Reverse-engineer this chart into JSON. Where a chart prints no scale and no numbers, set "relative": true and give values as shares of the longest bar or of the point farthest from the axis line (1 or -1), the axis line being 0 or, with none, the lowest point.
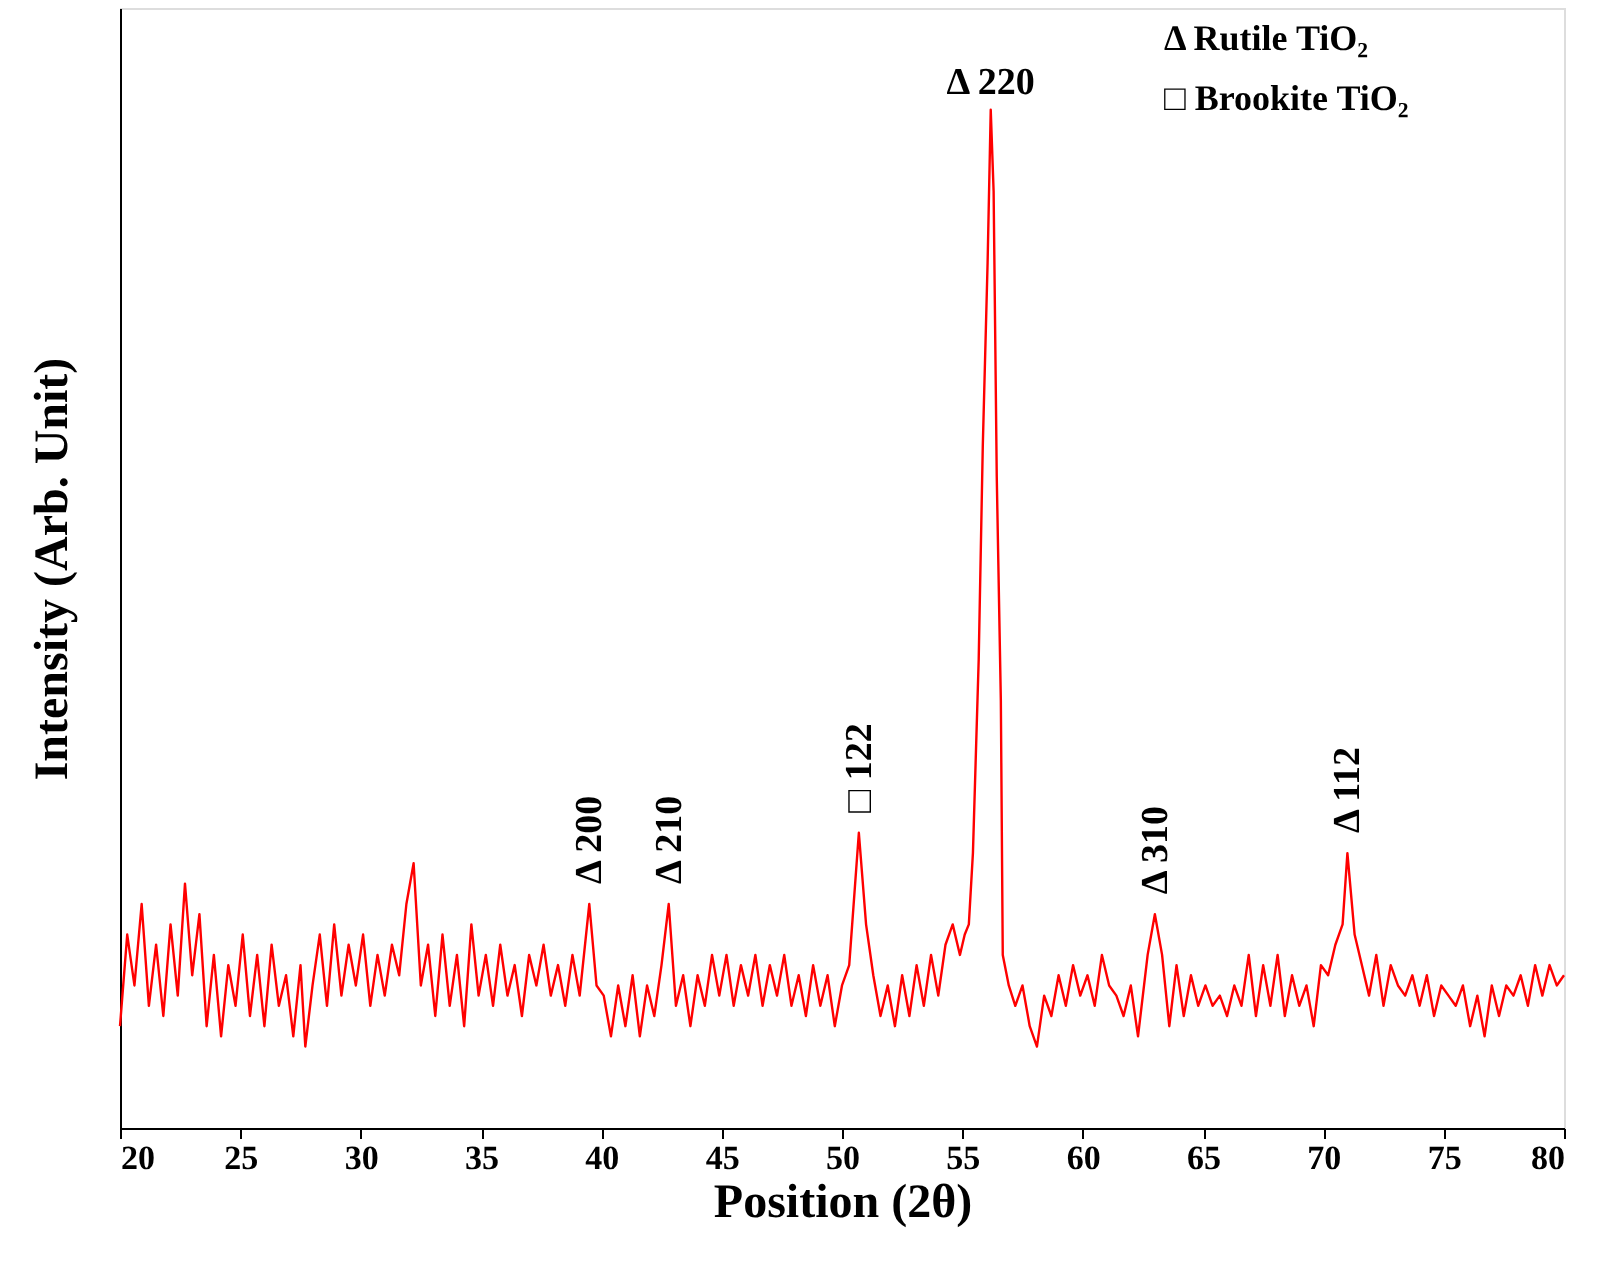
{
  "chart_data": {
    "type": "line",
    "relative": true,
    "xlabel": "Position (2θ)",
    "ylabel": "Intensity (Arb. Unit)",
    "xlim": [
      20,
      80
    ],
    "xticks": [
      20,
      25,
      30,
      35,
      40,
      45,
      50,
      55,
      60,
      65,
      70,
      75,
      80
    ],
    "grid": false,
    "tick_labels": "x",
    "series": [
      {
        "color": "#ff0000",
        "x": [
          20.0,
          20.3,
          20.6,
          20.9,
          21.2,
          21.5,
          21.8,
          22.1,
          22.4,
          22.7,
          23.0,
          23.3,
          23.6,
          23.9,
          24.2,
          24.5,
          24.8,
          25.1,
          25.4,
          25.7,
          26.0,
          26.3,
          26.6,
          26.9,
          27.2,
          27.5,
          27.7,
          28.0,
          28.3,
          28.6,
          28.9,
          29.2,
          29.5,
          29.8,
          30.1,
          30.4,
          30.7,
          31.0,
          31.3,
          31.6,
          31.9,
          32.2,
          32.5,
          32.8,
          33.1,
          33.4,
          33.7,
          34.0,
          34.3,
          34.6,
          34.9,
          35.2,
          35.5,
          35.8,
          36.1,
          36.4,
          36.7,
          37.0,
          37.3,
          37.6,
          37.9,
          38.2,
          38.5,
          38.8,
          39.1,
          39.5,
          39.8,
          40.1,
          40.4,
          40.7,
          41.0,
          41.3,
          41.6,
          41.9,
          42.2,
          42.5,
          42.8,
          43.1,
          43.4,
          43.7,
          44.0,
          44.3,
          44.6,
          44.9,
          45.2,
          45.5,
          45.8,
          46.1,
          46.4,
          46.7,
          47.0,
          47.3,
          47.6,
          47.9,
          48.2,
          48.5,
          48.8,
          49.1,
          49.4,
          49.7,
          50.0,
          50.3,
          50.7,
          51.0,
          51.3,
          51.6,
          51.9,
          52.2,
          52.5,
          52.8,
          53.1,
          53.4,
          53.7,
          54.0,
          54.3,
          54.6,
          54.9,
          55.1,
          55.27,
          55.44,
          55.68,
          55.85,
          56.05,
          56.18,
          56.3,
          56.43,
          56.6,
          56.68,
          56.93,
          57.2,
          57.5,
          57.8,
          58.1,
          58.4,
          58.7,
          59.0,
          59.3,
          59.6,
          59.9,
          60.2,
          60.5,
          60.8,
          61.1,
          61.4,
          61.7,
          62.0,
          62.3,
          62.7,
          63.0,
          63.3,
          63.6,
          63.9,
          64.2,
          64.5,
          64.8,
          65.1,
          65.4,
          65.7,
          66.0,
          66.3,
          66.6,
          66.9,
          67.2,
          67.5,
          67.8,
          68.1,
          68.4,
          68.7,
          69.0,
          69.3,
          69.6,
          69.9,
          70.2,
          70.5,
          70.8,
          71.0,
          71.3,
          71.6,
          71.9,
          72.2,
          72.5,
          72.8,
          73.1,
          73.4,
          73.7,
          74.0,
          74.3,
          74.6,
          74.9,
          75.2,
          75.5,
          75.8,
          76.1,
          76.4,
          76.7,
          77.0,
          77.3,
          77.6,
          77.9,
          78.2,
          78.5,
          78.8,
          79.1,
          79.4,
          79.7,
          80.0
        ],
        "values": [
          0.1,
          0.19,
          0.14,
          0.22,
          0.12,
          0.18,
          0.11,
          0.2,
          0.13,
          0.24,
          0.15,
          0.21,
          0.1,
          0.17,
          0.09,
          0.16,
          0.12,
          0.19,
          0.11,
          0.17,
          0.1,
          0.18,
          0.12,
          0.15,
          0.09,
          0.16,
          0.08,
          0.14,
          0.19,
          0.12,
          0.2,
          0.13,
          0.18,
          0.14,
          0.19,
          0.12,
          0.17,
          0.13,
          0.18,
          0.15,
          0.22,
          0.26,
          0.14,
          0.18,
          0.11,
          0.19,
          0.12,
          0.17,
          0.1,
          0.2,
          0.13,
          0.17,
          0.12,
          0.18,
          0.13,
          0.16,
          0.11,
          0.17,
          0.14,
          0.18,
          0.13,
          0.16,
          0.12,
          0.17,
          0.13,
          0.22,
          0.14,
          0.13,
          0.09,
          0.14,
          0.1,
          0.15,
          0.09,
          0.14,
          0.11,
          0.16,
          0.22,
          0.12,
          0.15,
          0.1,
          0.15,
          0.12,
          0.17,
          0.13,
          0.17,
          0.12,
          0.16,
          0.13,
          0.17,
          0.12,
          0.16,
          0.13,
          0.17,
          0.12,
          0.15,
          0.11,
          0.16,
          0.12,
          0.15,
          0.1,
          0.14,
          0.16,
          0.29,
          0.2,
          0.15,
          0.11,
          0.14,
          0.1,
          0.15,
          0.11,
          0.16,
          0.12,
          0.17,
          0.13,
          0.18,
          0.2,
          0.17,
          0.19,
          0.2,
          0.27,
          0.46,
          0.67,
          0.85,
          1.0,
          0.92,
          0.64,
          0.42,
          0.17,
          0.14,
          0.12,
          0.14,
          0.1,
          0.08,
          0.13,
          0.11,
          0.15,
          0.12,
          0.16,
          0.13,
          0.15,
          0.12,
          0.17,
          0.14,
          0.13,
          0.11,
          0.14,
          0.09,
          0.17,
          0.21,
          0.17,
          0.1,
          0.16,
          0.11,
          0.15,
          0.12,
          0.14,
          0.12,
          0.13,
          0.11,
          0.14,
          0.12,
          0.17,
          0.11,
          0.16,
          0.12,
          0.17,
          0.11,
          0.15,
          0.12,
          0.14,
          0.1,
          0.16,
          0.15,
          0.18,
          0.2,
          0.27,
          0.19,
          0.16,
          0.13,
          0.17,
          0.12,
          0.16,
          0.14,
          0.13,
          0.15,
          0.12,
          0.15,
          0.11,
          0.14,
          0.13,
          0.12,
          0.14,
          0.1,
          0.13,
          0.09,
          0.14,
          0.11,
          0.14,
          0.13,
          0.15,
          0.12,
          0.16,
          0.13,
          0.16,
          0.14,
          0.15
        ]
      }
    ],
    "annotations": [
      "Δ Rutile TiO₂",
      "□ Brookite TiO₂",
      {
        "text": "Δ 200",
        "x": 39.5,
        "y": 0.22
      },
      {
        "text": "Δ 210",
        "x": 42.8,
        "y": 0.22
      },
      {
        "text": "□ 122",
        "x": 50.7,
        "y": 0.29
      },
      {
        "text": "Δ 220",
        "x": 56.18,
        "y": 1.0
      },
      {
        "text": "Δ 310",
        "x": 63.0,
        "y": 0.21
      },
      {
        "text": "Δ 112",
        "x": 71.0,
        "y": 0.27
      }
    ]
  }
}
